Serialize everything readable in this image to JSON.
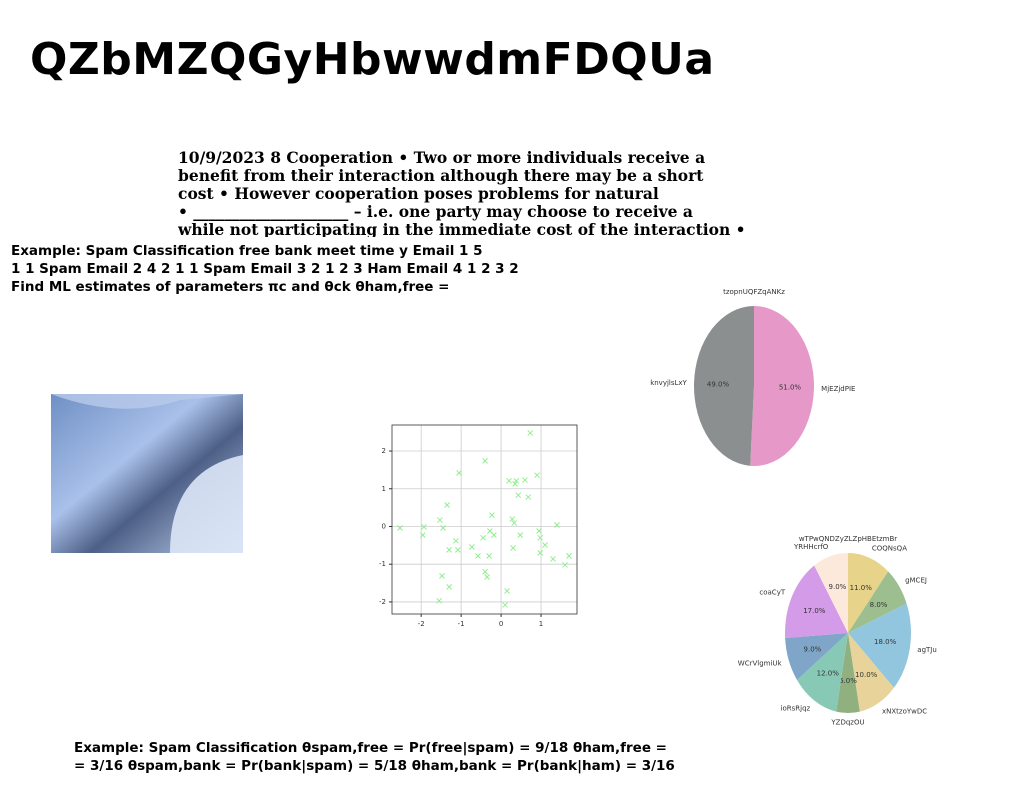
{
  "title": "QZbMZQGyHbwwdmFDQUa",
  "paragraph": [
    "10/9/2023 8 Cooperation • Two or more individuals receive a",
    "benefit from their interaction although there may be a short",
    "cost • However cooperation poses problems for natural",
    "• ____________________ – i.e. one party may choose to receive a",
    "while not participating in the immediate cost of the interaction •"
  ],
  "example_1": [
    "Example: Spam Classification free bank meet time y Email 1 5",
    "1 1 Spam Email 2 4 2 1 1 Spam Email 3 2 1 2 3 Ham Email 4 1 2 3 2",
    "Find ML estimates of parameters πc and θck θham,free ="
  ],
  "example_2": [
    "Example: Spam Classification θspam,free = Pr(free|spam) = 9/18 θham,free =",
    "= 3/16 θspam,bank = Pr(bank|spam) = 5/18 θham,bank = Pr(bank|ham) = 3/16"
  ],
  "chart_data": [
    {
      "type": "scatter",
      "color": "#90ee90",
      "grid": true,
      "xlim": [
        -2.73,
        1.9
      ],
      "ylim": [
        -2.32,
        2.69
      ],
      "xticks": [
        -2,
        -1,
        0,
        1
      ],
      "yticks": [
        -2,
        -1,
        0,
        1,
        2
      ],
      "x": [
        -2.53,
        -1.93,
        -1.96,
        -1.53,
        -1.45,
        -1.35,
        -1.3,
        -1.13,
        -1.08,
        -1.05,
        -1.48,
        -1.3,
        -1.55,
        -0.73,
        -0.58,
        -0.45,
        -0.4,
        -0.35,
        -0.4,
        -0.3,
        -0.28,
        -0.23,
        -0.18,
        0.1,
        0.15,
        0.2,
        0.28,
        0.3,
        0.33,
        0.35,
        0.38,
        0.43,
        0.48,
        0.6,
        0.68,
        0.73,
        0.9,
        0.95,
        0.98,
        0.98,
        1.1,
        1.3,
        1.4,
        1.6,
        1.7
      ],
      "values": [
        -0.04,
        -0.01,
        -0.23,
        0.17,
        -0.04,
        0.57,
        -0.62,
        -0.38,
        -0.62,
        1.42,
        -1.31,
        -1.6,
        -1.97,
        -0.54,
        -0.78,
        -0.3,
        1.74,
        -1.34,
        -1.2,
        -0.78,
        -0.12,
        0.3,
        -0.23,
        -2.08,
        -1.71,
        1.21,
        0.2,
        -0.57,
        0.09,
        1.13,
        1.21,
        0.83,
        -0.23,
        1.23,
        0.78,
        2.48,
        1.36,
        -0.12,
        -0.3,
        -0.7,
        -0.49,
        -0.86,
        0.04,
        -1.02,
        -0.78
      ]
    },
    {
      "type": "pie",
      "title": "tzopnUQFZqANKz",
      "categories": [
        "MjEZjdPIE",
        "knvyjlsLxY"
      ],
      "values": [
        51,
        49
      ],
      "value_labels": [
        "51.0%",
        "49.0%"
      ],
      "colors": [
        "#e699c8",
        "#8c8f8f"
      ]
    },
    {
      "type": "pie",
      "title": "wTPwQNDZyZLZpHBEtzmBr",
      "categories": [
        "COQNsQA",
        "gMCEJ",
        "agTJu",
        "xNXtzoYwDC",
        "YZDqzOU",
        "ioRsRjqz",
        "WCrVlgmiUk",
        "coaCyT",
        "YRHHcrfO"
      ],
      "values": [
        11,
        8,
        18,
        10,
        6,
        12,
        9,
        17,
        9
      ],
      "value_labels": [
        "11.0%",
        "8.0%",
        "18.0%",
        "10.0%",
        "6.0%",
        "12.0%",
        "9.0%",
        "17.0%",
        "9.0%"
      ],
      "colors": [
        "#e8d38a",
        "#9dbf8f",
        "#92c5de",
        "#e8d49a",
        "#90b07f",
        "#88c9b5",
        "#7fa6c8",
        "#d39be8",
        "#fde8dc"
      ]
    }
  ]
}
